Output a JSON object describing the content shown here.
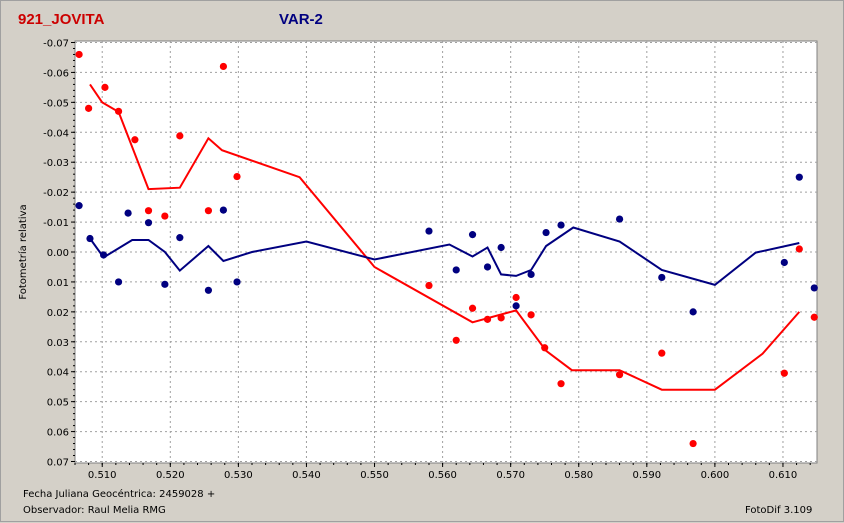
{
  "header": {
    "title": "921_JOVITA",
    "title_color": "#cc0000",
    "subtitle": "VAR-2",
    "subtitle_color": "#000080"
  },
  "footer": {
    "fecha": "Fecha Juliana Geocéntrica: 2459028 +",
    "observador": "Observador: Raul Melia RMG",
    "software": "FotoDif 3.109"
  },
  "chart_data": {
    "type": "scatter",
    "ylabel": "Fotometría relativa",
    "xlabel": "",
    "xlim": [
      0.506,
      0.615
    ],
    "ylim": [
      -0.0705,
      0.0705
    ],
    "y_inverted": true,
    "grid": true,
    "x_ticks": [
      0.51,
      0.52,
      0.53,
      0.54,
      0.55,
      0.56,
      0.57,
      0.58,
      0.59,
      0.6,
      0.61
    ],
    "x_tick_labels": [
      "0.510",
      "0.520",
      "0.530",
      "0.540",
      "0.550",
      "0.560",
      "0.570",
      "0.580",
      "0.590",
      "0.600",
      "0.610"
    ],
    "y_ticks": [
      -0.07,
      -0.06,
      -0.05,
      -0.04,
      -0.03,
      -0.02,
      -0.01,
      0.0,
      0.01,
      0.02,
      0.03,
      0.04,
      0.05,
      0.06,
      0.07
    ],
    "y_tick_labels": [
      "-0.07",
      "-0.06",
      "-0.05",
      "-0.04",
      "-0.03",
      "-0.02",
      "-0.01",
      "0.00",
      "0.01",
      "0.02",
      "0.03",
      "0.04",
      "0.05",
      "0.06",
      "0.07"
    ],
    "series": [
      {
        "color": "#ff0000",
        "points": [
          [
            0.5066,
            -0.066
          ],
          [
            0.508,
            -0.048
          ],
          [
            0.5104,
            -0.055
          ],
          [
            0.5124,
            -0.047
          ],
          [
            0.5148,
            -0.0375
          ],
          [
            0.5168,
            -0.0138
          ],
          [
            0.5192,
            -0.012
          ],
          [
            0.5214,
            -0.0388
          ],
          [
            0.5256,
            -0.0138
          ],
          [
            0.5278,
            -0.062
          ],
          [
            0.5298,
            -0.0252
          ],
          [
            0.558,
            0.0112
          ],
          [
            0.562,
            0.0295
          ],
          [
            0.5644,
            0.0188
          ],
          [
            0.5666,
            0.0225
          ],
          [
            0.5686,
            0.022
          ],
          [
            0.5708,
            0.0152
          ],
          [
            0.573,
            0.021
          ],
          [
            0.575,
            0.032
          ],
          [
            0.5774,
            0.044
          ],
          [
            0.586,
            0.041
          ],
          [
            0.5922,
            0.0338
          ],
          [
            0.5968,
            0.064
          ],
          [
            0.6102,
            0.0405
          ],
          [
            0.6124,
            -0.001
          ],
          [
            0.6146,
            0.0218
          ]
        ],
        "trend": [
          [
            0.5082,
            -0.056
          ],
          [
            0.51,
            -0.05
          ],
          [
            0.5124,
            -0.0468
          ],
          [
            0.5168,
            -0.021
          ],
          [
            0.5214,
            -0.0215
          ],
          [
            0.5256,
            -0.038
          ],
          [
            0.5276,
            -0.034
          ],
          [
            0.539,
            -0.025
          ],
          [
            0.55,
            0.005
          ],
          [
            0.5644,
            0.0235
          ],
          [
            0.5708,
            0.0195
          ],
          [
            0.5752,
            0.033
          ],
          [
            0.579,
            0.0395
          ],
          [
            0.586,
            0.0395
          ],
          [
            0.5922,
            0.046
          ],
          [
            0.6,
            0.046
          ],
          [
            0.607,
            0.034
          ],
          [
            0.6124,
            0.02
          ]
        ]
      },
      {
        "color": "#000080",
        "points": [
          [
            0.5066,
            -0.0155
          ],
          [
            0.5082,
            -0.0045
          ],
          [
            0.5102,
            0.001
          ],
          [
            0.5124,
            0.01
          ],
          [
            0.5138,
            -0.013
          ],
          [
            0.5168,
            -0.0098
          ],
          [
            0.5192,
            0.0108
          ],
          [
            0.5214,
            -0.0048
          ],
          [
            0.5256,
            0.0128
          ],
          [
            0.5278,
            -0.014
          ],
          [
            0.5298,
            0.01
          ],
          [
            0.558,
            -0.007
          ],
          [
            0.562,
            0.006
          ],
          [
            0.5644,
            -0.0058
          ],
          [
            0.5666,
            0.005
          ],
          [
            0.5686,
            -0.0015
          ],
          [
            0.5708,
            0.018
          ],
          [
            0.573,
            0.0075
          ],
          [
            0.5752,
            -0.0065
          ],
          [
            0.5774,
            -0.009
          ],
          [
            0.586,
            -0.011
          ],
          [
            0.5922,
            0.0085
          ],
          [
            0.5968,
            0.02
          ],
          [
            0.6102,
            0.0035
          ],
          [
            0.6124,
            -0.025
          ],
          [
            0.6146,
            0.012
          ]
        ],
        "trend": [
          [
            0.5082,
            -0.0045
          ],
          [
            0.5102,
            0.0018
          ],
          [
            0.5144,
            -0.004
          ],
          [
            0.5168,
            -0.004
          ],
          [
            0.5192,
            0.0
          ],
          [
            0.5214,
            0.0062
          ],
          [
            0.5256,
            -0.002
          ],
          [
            0.5278,
            0.003
          ],
          [
            0.532,
            0.0
          ],
          [
            0.54,
            -0.0035
          ],
          [
            0.55,
            0.0025
          ],
          [
            0.561,
            -0.0025
          ],
          [
            0.5644,
            0.0015
          ],
          [
            0.5666,
            -0.0015
          ],
          [
            0.5686,
            0.0075
          ],
          [
            0.5708,
            0.008
          ],
          [
            0.573,
            0.006
          ],
          [
            0.5752,
            -0.002
          ],
          [
            0.5792,
            -0.0082
          ],
          [
            0.586,
            -0.0035
          ],
          [
            0.5922,
            0.006
          ],
          [
            0.6,
            0.011
          ],
          [
            0.606,
            0.0002
          ],
          [
            0.6124,
            -0.003
          ]
        ]
      }
    ]
  }
}
